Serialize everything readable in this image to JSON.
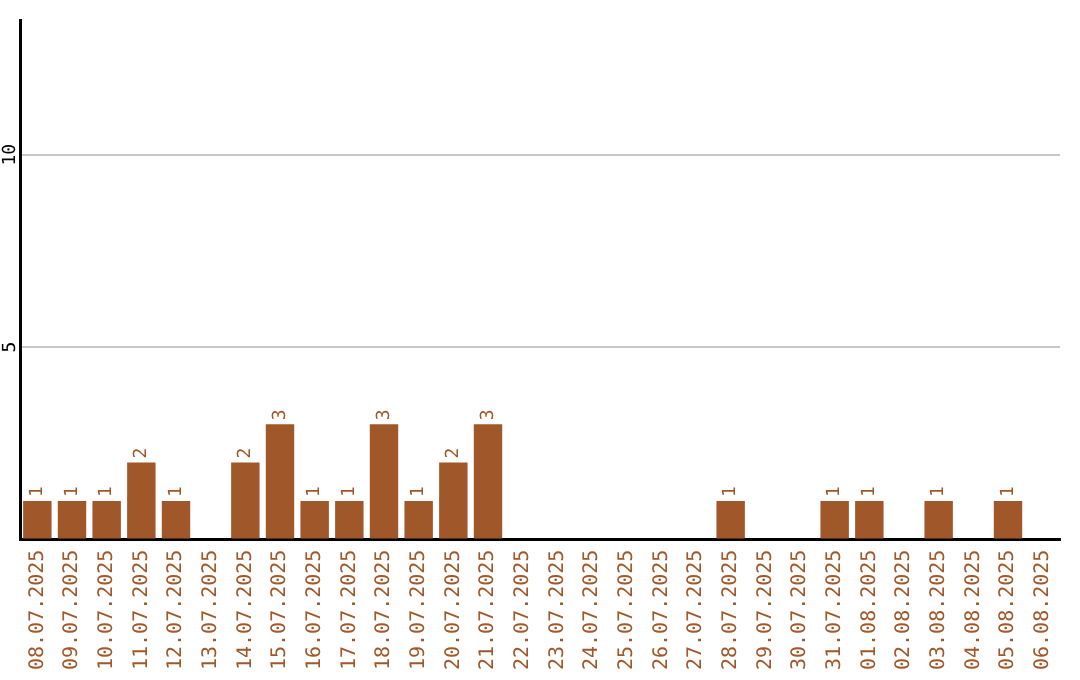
{
  "chart_data": {
    "type": "bar",
    "categories": [
      "08.07.2025",
      "09.07.2025",
      "10.07.2025",
      "11.07.2025",
      "12.07.2025",
      "13.07.2025",
      "14.07.2025",
      "15.07.2025",
      "16.07.2025",
      "17.07.2025",
      "18.07.2025",
      "19.07.2025",
      "20.07.2025",
      "21.07.2025",
      "22.07.2025",
      "23.07.2025",
      "24.07.2025",
      "25.07.2025",
      "26.07.2025",
      "27.07.2025",
      "28.07.2025",
      "29.07.2025",
      "30.07.2025",
      "31.07.2025",
      "01.08.2025",
      "02.08.2025",
      "03.08.2025",
      "04.08.2025",
      "05.08.2025",
      "06.08.2025"
    ],
    "values": [
      1,
      1,
      1,
      2,
      1,
      0,
      2,
      3,
      1,
      1,
      3,
      1,
      2,
      3,
      0,
      0,
      0,
      0,
      0,
      0,
      1,
      0,
      0,
      1,
      1,
      0,
      1,
      0,
      1,
      0
    ],
    "value_labels": [
      "1",
      "1",
      "1",
      "2",
      "1",
      null,
      "2",
      "3",
      "1",
      "1",
      "3",
      "1",
      "2",
      "3",
      null,
      null,
      null,
      null,
      null,
      null,
      "1",
      null,
      null,
      "1",
      "1",
      null,
      "1",
      null,
      "1",
      null
    ],
    "color": "#a0582a",
    "ylim": [
      0,
      13.5
    ],
    "yticks": [
      {
        "value": 0,
        "label": null
      },
      5,
      10
    ],
    "grid": "y",
    "legend": false
  }
}
